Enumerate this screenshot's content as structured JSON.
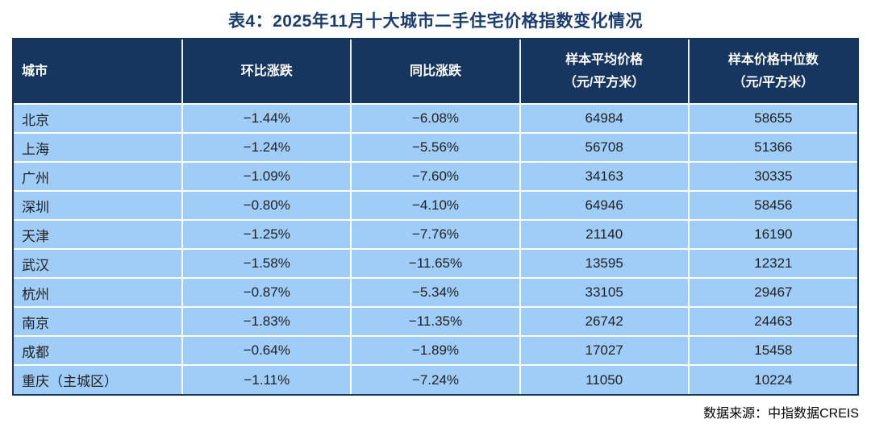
{
  "title": "表4：2025年11月十大城市二手住宅价格指数变化情况",
  "source_note": "数据来源：中指数据CREIS",
  "colors": {
    "title_text": "#1a3c6e",
    "header_bg": "#16365f",
    "header_text": "#ffffff",
    "row_bg": "#9fcdf8",
    "cell_text": "#212121",
    "divider": "#ffffff",
    "outer_border": "#16365f",
    "page_bg": "#ffffff"
  },
  "table": {
    "headers": [
      {
        "label": "城市",
        "sub": ""
      },
      {
        "label": "环比涨跌",
        "sub": ""
      },
      {
        "label": "同比涨跌",
        "sub": ""
      },
      {
        "label": "样本平均价格",
        "sub": "（元/平方米）"
      },
      {
        "label": "样本价格中位数",
        "sub": "（元/平方米）"
      }
    ],
    "rows": [
      {
        "city": "北京",
        "mom": "−1.44%",
        "yoy": "−6.08%",
        "avg": "64984",
        "median": "58655"
      },
      {
        "city": "上海",
        "mom": "−1.24%",
        "yoy": "−5.56%",
        "avg": "56708",
        "median": "51366"
      },
      {
        "city": "广州",
        "mom": "−1.09%",
        "yoy": "−7.60%",
        "avg": "34163",
        "median": "30335"
      },
      {
        "city": "深圳",
        "mom": "−0.80%",
        "yoy": "−4.10%",
        "avg": "64946",
        "median": "58456"
      },
      {
        "city": "天津",
        "mom": "−1.25%",
        "yoy": "−7.76%",
        "avg": "21140",
        "median": "16190"
      },
      {
        "city": "武汉",
        "mom": "−1.58%",
        "yoy": "−11.65%",
        "avg": "13595",
        "median": "12321"
      },
      {
        "city": "杭州",
        "mom": "−0.87%",
        "yoy": "−5.34%",
        "avg": "33105",
        "median": "29467"
      },
      {
        "city": "南京",
        "mom": "−1.83%",
        "yoy": "−11.35%",
        "avg": "26742",
        "median": "24463"
      },
      {
        "city": "成都",
        "mom": "−0.64%",
        "yoy": "−1.89%",
        "avg": "17027",
        "median": "15458"
      },
      {
        "city": "重庆（主城区）",
        "mom": "−1.11%",
        "yoy": "−7.24%",
        "avg": "11050",
        "median": "10224"
      }
    ]
  },
  "chart_data": {
    "type": "table",
    "title": "表4：2025年11月十大城市二手住宅价格指数变化情况",
    "columns": [
      "城市",
      "环比涨跌",
      "同比涨跌",
      "样本平均价格（元/平方米）",
      "样本价格中位数（元/平方米）"
    ],
    "rows": [
      [
        "北京",
        "-1.44%",
        "-6.08%",
        64984,
        58655
      ],
      [
        "上海",
        "-1.24%",
        "-5.56%",
        56708,
        51366
      ],
      [
        "广州",
        "-1.09%",
        "-7.60%",
        34163,
        30335
      ],
      [
        "深圳",
        "-0.80%",
        "-4.10%",
        64946,
        58456
      ],
      [
        "天津",
        "-1.25%",
        "-7.76%",
        21140,
        16190
      ],
      [
        "武汉",
        "-1.58%",
        "-11.65%",
        13595,
        12321
      ],
      [
        "杭州",
        "-0.87%",
        "-5.34%",
        33105,
        29467
      ],
      [
        "南京",
        "-1.83%",
        "-11.35%",
        26742,
        24463
      ],
      [
        "成都",
        "-0.64%",
        "-1.89%",
        17027,
        15458
      ],
      [
        "重庆（主城区）",
        "-1.11%",
        "-7.24%",
        11050,
        10224
      ]
    ],
    "source": "数据来源：中指数据CREIS"
  }
}
